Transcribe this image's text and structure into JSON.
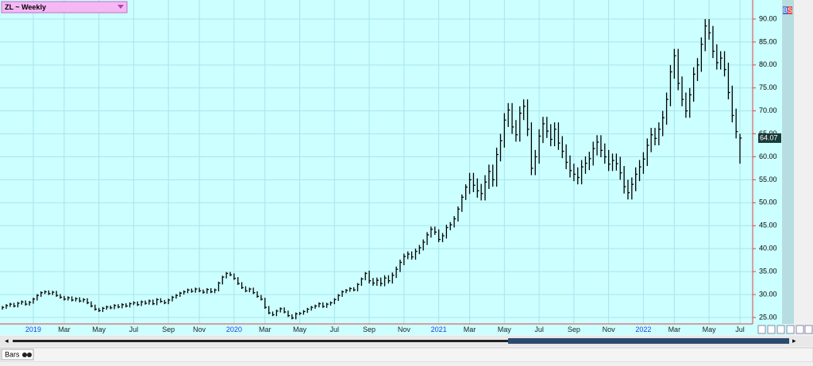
{
  "chart_data": {
    "type": "ohlc",
    "title": "ZL ~ Weekly",
    "categories": [
      null,
      null,
      null,
      null,
      null,
      null,
      null,
      null,
      "2019",
      null,
      null,
      null,
      null,
      null,
      null,
      null,
      "Mar",
      null,
      null,
      null,
      null,
      null,
      null,
      null,
      null,
      "May",
      null,
      null,
      null,
      null,
      null,
      null,
      null,
      null,
      "Jul",
      null,
      null,
      null,
      null,
      null,
      null,
      null,
      null,
      "Sep",
      null,
      null,
      null,
      null,
      null,
      null,
      null,
      "Nov",
      null,
      null,
      null,
      null,
      null,
      null,
      null,
      null,
      "2020",
      null,
      null,
      null,
      null,
      null,
      null,
      null,
      "Mar",
      null,
      null,
      null,
      null,
      null,
      null,
      null,
      null,
      "May",
      null,
      null,
      null,
      null,
      null,
      null,
      null,
      null,
      "Jul",
      null,
      null,
      null,
      null,
      null,
      null,
      null,
      null,
      "Sep",
      null,
      null,
      null,
      null,
      null,
      null,
      null,
      null,
      "Nov",
      null,
      null,
      null,
      null,
      null,
      null,
      null,
      null,
      "2021",
      null,
      null,
      null,
      null,
      null,
      null,
      null,
      "Mar",
      null,
      null,
      null,
      null,
      null,
      null,
      null,
      null,
      "May",
      null,
      null,
      null,
      null,
      null,
      null,
      null,
      null,
      "Jul",
      null,
      null,
      null,
      null,
      null,
      null,
      null,
      null,
      "Sep",
      null,
      null,
      null,
      null,
      null,
      null,
      null,
      null,
      "Nov",
      null,
      null,
      null,
      null,
      null,
      null,
      null,
      null,
      "2022",
      null,
      null,
      null,
      null,
      null,
      null,
      null,
      "Mar",
      null,
      null,
      null,
      null,
      null,
      null,
      null,
      null,
      "May",
      null,
      null,
      null,
      null,
      null,
      null,
      null,
      "Jul"
    ],
    "high": [
      27.5,
      27.9,
      28.2,
      28.2,
      28.4,
      28.7,
      28.7,
      28.6,
      29.3,
      30.1,
      30.7,
      30.9,
      30.9,
      30.8,
      30.8,
      30.1,
      29.7,
      29.6,
      29.6,
      29.4,
      29.4,
      29.2,
      29.2,
      28.5,
      27.8,
      27.1,
      27.3,
      27.6,
      27.6,
      27.9,
      27.9,
      28.1,
      28.1,
      28.3,
      28.5,
      28.5,
      28.7,
      28.7,
      28.9,
      28.9,
      29.2,
      29.2,
      28.8,
      29.1,
      29.7,
      30.1,
      30.6,
      30.9,
      31.3,
      31.3,
      31.5,
      31.5,
      31.1,
      31.4,
      31.4,
      31.3,
      32.8,
      34.1,
      34.9,
      34.9,
      34.6,
      33.8,
      32.7,
      31.8,
      31.5,
      31.5,
      30.7,
      29.9,
      29.3,
      27.5,
      26.3,
      26.7,
      27.2,
      27.2,
      26.5,
      25.7,
      26.1,
      26.2,
      26.6,
      27.1,
      27.5,
      27.8,
      28.3,
      28.3,
      28.2,
      28.5,
      29.2,
      30.1,
      30.9,
      31.2,
      31.6,
      31.6,
      32.5,
      33.7,
      34.9,
      35.2,
      33.6,
      33.7,
      33.7,
      34.2,
      34.2,
      34.8,
      36.1,
      37.6,
      38.9,
      39.4,
      39.4,
      40.0,
      40.8,
      42.0,
      43.6,
      44.8,
      44.8,
      44.2,
      43.4,
      45.2,
      45.8,
      47.1,
      49.2,
      51.8,
      54.0,
      56.5,
      56.5,
      55.3,
      54.1,
      56.0,
      58.3,
      58.3,
      62.0,
      65.0,
      69.5,
      71.7,
      71.7,
      68.0,
      71.0,
      72.5,
      72.5,
      67.5,
      61.5,
      66.0,
      68.7,
      68.7,
      67.1,
      67.5,
      67.5,
      64.5,
      62.7,
      60.3,
      58.5,
      57.7,
      59.3,
      60.1,
      61.1,
      63.3,
      64.7,
      64.7,
      62.9,
      61.5,
      60.7,
      60.7,
      60.0,
      58.0,
      55.0,
      55.5,
      57.7,
      59.3,
      61.0,
      64.0,
      66.3,
      66.3,
      67.5,
      70.0,
      74.0,
      80.0,
      83.5,
      83.5,
      77.5,
      74.0,
      75.0,
      79.5,
      81.5,
      86.0,
      90.0,
      90.0,
      88.5,
      84.5,
      83.0,
      83.0,
      80.5,
      75.5,
      70.5,
      65.0
    ],
    "low": [
      26.7,
      26.9,
      27.3,
      27.2,
      27.2,
      27.8,
      27.6,
      27.6,
      28.0,
      28.7,
      29.5,
      30.1,
      29.9,
      29.9,
      29.5,
      29.1,
      28.7,
      28.7,
      28.5,
      28.5,
      28.3,
      28.3,
      27.9,
      27.2,
      26.5,
      26.2,
      26.2,
      26.7,
      26.8,
      26.8,
      27.0,
      27.0,
      27.2,
      27.2,
      27.7,
      27.5,
      27.5,
      27.8,
      27.8,
      27.7,
      27.7,
      28.2,
      27.9,
      27.9,
      28.5,
      29.1,
      29.5,
      30.0,
      30.3,
      30.4,
      30.4,
      30.5,
      30.2,
      30.2,
      30.3,
      30.3,
      30.7,
      32.2,
      33.5,
      34.0,
      33.2,
      32.1,
      31.2,
      30.5,
      30.5,
      30.1,
      29.3,
      28.7,
      26.9,
      25.7,
      25.3,
      25.3,
      26.1,
      25.9,
      25.1,
      24.6,
      24.6,
      25.5,
      25.6,
      26.0,
      26.5,
      26.9,
      27.2,
      27.1,
      27.1,
      27.6,
      27.9,
      28.6,
      29.5,
      30.3,
      30.6,
      30.7,
      30.7,
      31.9,
      33.1,
      32.4,
      31.9,
      31.9,
      31.8,
      31.8,
      32.4,
      32.4,
      33.6,
      34.9,
      36.4,
      37.7,
      37.6,
      37.6,
      38.8,
      39.6,
      40.8,
      42.4,
      43.0,
      41.4,
      41.4,
      42.2,
      44.0,
      44.6,
      45.9,
      48.0,
      50.6,
      51.9,
      52.3,
      51.1,
      50.5,
      50.5,
      53.0,
      53.5,
      53.5,
      59.0,
      62.0,
      66.5,
      65.0,
      63.3,
      63.3,
      68.0,
      64.5,
      56.0,
      56.0,
      58.5,
      63.0,
      64.1,
      62.3,
      62.3,
      61.5,
      59.7,
      57.3,
      55.5,
      54.7,
      54.0,
      54.0,
      56.3,
      57.1,
      58.1,
      60.3,
      59.9,
      58.5,
      56.9,
      56.9,
      57.0,
      55.0,
      52.0,
      50.7,
      50.7,
      52.5,
      54.7,
      56.3,
      58.0,
      61.0,
      62.5,
      62.5,
      64.5,
      67.0,
      71.0,
      77.0,
      74.5,
      71.0,
      68.5,
      68.5,
      72.0,
      76.5,
      78.5,
      83.0,
      85.5,
      81.5,
      79.0,
      79.0,
      77.5,
      72.5,
      67.5,
      64.0,
      58.5
    ],
    "close": [
      27.2,
      27.6,
      27.9,
      27.5,
      28.1,
      28.4,
      27.9,
      28.3,
      29.0,
      29.8,
      30.4,
      30.6,
      30.2,
      30.5,
      29.8,
      29.4,
      29.0,
      29.3,
      28.8,
      29.1,
      28.6,
      28.9,
      28.2,
      27.5,
      26.8,
      26.5,
      27.0,
      27.3,
      27.1,
      27.6,
      27.3,
      27.8,
      27.5,
      28.0,
      28.2,
      27.8,
      28.4,
      28.1,
      28.6,
      28.0,
      28.9,
      28.5,
      28.2,
      28.8,
      29.4,
      29.8,
      30.3,
      30.6,
      31.0,
      30.7,
      31.2,
      30.8,
      30.5,
      31.1,
      30.6,
      31.0,
      32.5,
      33.8,
      34.6,
      34.3,
      33.5,
      32.4,
      31.5,
      30.8,
      31.2,
      30.4,
      29.6,
      29.0,
      27.2,
      26.0,
      25.6,
      26.4,
      26.9,
      26.2,
      25.4,
      24.9,
      25.8,
      25.9,
      26.3,
      26.8,
      27.2,
      27.5,
      28.0,
      27.4,
      27.9,
      28.2,
      28.9,
      29.8,
      30.6,
      30.9,
      31.3,
      31.0,
      32.2,
      33.4,
      34.6,
      33.0,
      32.5,
      33.1,
      32.4,
      33.6,
      33.0,
      34.2,
      35.5,
      37.0,
      38.3,
      38.8,
      38.2,
      39.4,
      40.2,
      41.4,
      43.0,
      44.2,
      43.6,
      42.0,
      42.8,
      44.6,
      45.2,
      46.5,
      48.6,
      51.2,
      53.4,
      55.0,
      53.8,
      52.6,
      52.0,
      54.5,
      56.8,
      55.0,
      60.5,
      63.5,
      68.0,
      70.2,
      66.5,
      64.8,
      69.5,
      71.0,
      66.0,
      57.5,
      60.0,
      64.5,
      67.2,
      65.6,
      63.8,
      66.0,
      63.0,
      61.2,
      58.8,
      57.0,
      56.2,
      55.5,
      57.8,
      58.6,
      59.6,
      61.8,
      63.2,
      61.4,
      60.0,
      58.4,
      59.2,
      58.5,
      56.5,
      53.5,
      52.2,
      54.0,
      56.2,
      57.8,
      59.5,
      62.5,
      64.8,
      64.0,
      66.0,
      68.5,
      72.5,
      78.5,
      82.0,
      76.0,
      72.5,
      70.0,
      73.5,
      78.0,
      80.0,
      84.5,
      88.5,
      87.0,
      83.0,
      80.5,
      81.5,
      79.0,
      74.0,
      69.0,
      65.5,
      64.07
    ],
    "color": "#000000",
    "last_price": 64.07,
    "ylim": [
      23.6,
      94.15
    ],
    "yticks": [
      {
        "value": 25,
        "label": "25.00"
      },
      {
        "value": 30,
        "label": "30.00"
      },
      {
        "value": 35,
        "label": "35.00"
      },
      {
        "value": 40,
        "label": "40.00"
      },
      {
        "value": 45,
        "label": "45.00"
      },
      {
        "value": 50,
        "label": "50.00"
      },
      {
        "value": 55,
        "label": "55.00"
      },
      {
        "value": 60,
        "label": "60.00"
      },
      {
        "value": 65,
        "label": "65.00"
      },
      {
        "value": 70,
        "label": "70.00"
      },
      {
        "value": 75,
        "label": "75.00"
      },
      {
        "value": 80,
        "label": "80.00"
      },
      {
        "value": 85,
        "label": "85.00"
      },
      {
        "value": 90,
        "label": "90.00"
      }
    ],
    "grid": true
  },
  "ui": {
    "buttons": [
      "B",
      "S"
    ],
    "tab": "Bars"
  }
}
